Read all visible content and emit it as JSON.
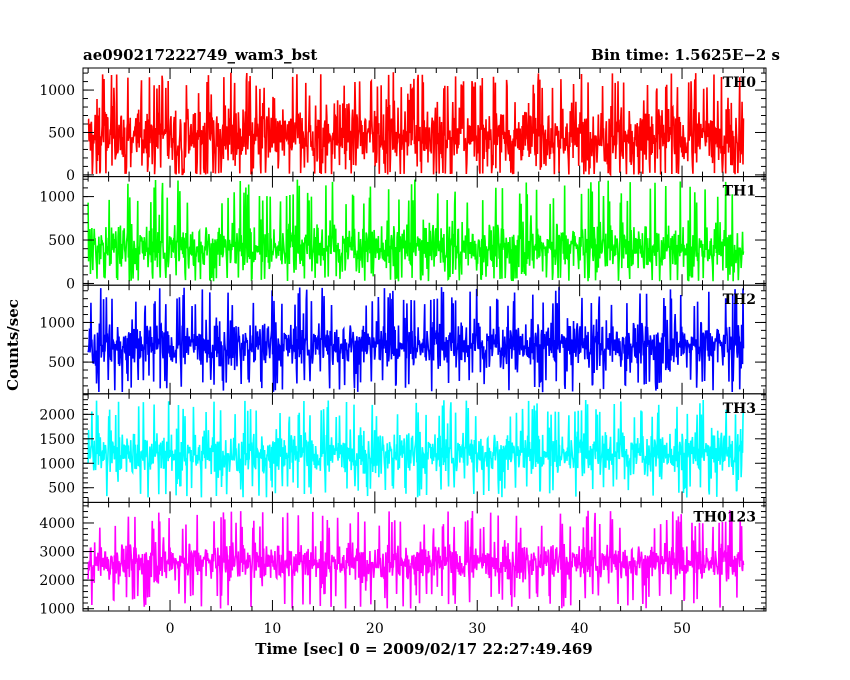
{
  "header": {
    "title": "ae090217222749_wam3_bst",
    "bin_time": "Bin time: 1.5625E−2 s"
  },
  "chart_data": {
    "type": "line",
    "xlabel": "Time [sec] 0 = 2009/02/17 22:27:49.469",
    "ylabel": "Counts/sec",
    "xlim": [
      -8.5,
      58.2
    ],
    "x_range": [
      -8,
      56
    ],
    "x_major_ticks": [
      0,
      10,
      20,
      30,
      40,
      50
    ],
    "x_tick_labels": [
      "0",
      "10",
      "20",
      "30",
      "40",
      "50"
    ],
    "panels": [
      {
        "name": "TH0",
        "color": "#ff0000",
        "ylim": [
          -20,
          1260
        ],
        "y_major_ticks": [
          0,
          500,
          1000
        ],
        "y_minor_step": 100,
        "band": [
          40,
          880
        ],
        "spike_range": [
          5,
          1210
        ]
      },
      {
        "name": "TH1",
        "color": "#00ff00",
        "ylim": [
          -20,
          1230
        ],
        "y_major_ticks": [
          0,
          500,
          1000
        ],
        "y_minor_step": 100,
        "band": [
          100,
          720
        ],
        "spike_range": [
          25,
          1200
        ]
      },
      {
        "name": "TH2",
        "color": "#0000ff",
        "ylim": [
          100,
          1470
        ],
        "y_major_ticks": [
          500,
          1000
        ],
        "y_minor_step": 100,
        "band": [
          390,
          1040
        ],
        "spike_range": [
          120,
          1450
        ]
      },
      {
        "name": "TH3",
        "color": "#00ffff",
        "ylim": [
          200,
          2420
        ],
        "y_major_ticks": [
          500,
          1000,
          1500,
          2000
        ],
        "y_minor_step": 100,
        "band": [
          700,
          1700
        ],
        "spike_range": [
          300,
          2300
        ]
      },
      {
        "name": "TH0123",
        "color": "#ff00ff",
        "ylim": [
          920,
          4720
        ],
        "y_major_ticks": [
          1000,
          2000,
          3000,
          4000
        ],
        "y_minor_step": 200,
        "band": [
          1900,
          3350
        ],
        "spike_range": [
          1000,
          4450
        ]
      }
    ]
  }
}
